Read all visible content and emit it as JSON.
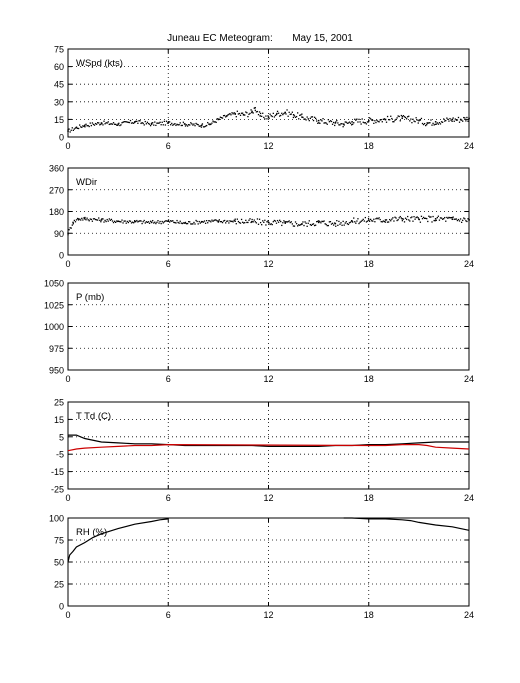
{
  "title": "Juneau EC Meteogram:       May 15, 2001",
  "chart_data": [
    {
      "type": "scatter",
      "label": "WSpd (kts)",
      "xlim": [
        0,
        24
      ],
      "xticks": [
        "0",
        "6",
        "12",
        "18",
        "24"
      ],
      "ylim": [
        0,
        75
      ],
      "yticks": [
        "0",
        "15",
        "30",
        "45",
        "60",
        "75"
      ],
      "grid": true,
      "series": [
        {
          "color": "#000000",
          "x": [
            0,
            0.5,
            1,
            2,
            3,
            4,
            5,
            6,
            7,
            8,
            8.5,
            9,
            9.5,
            10,
            10.5,
            11,
            11.2,
            11.5,
            12,
            12.5,
            13,
            13.5,
            14,
            15,
            16,
            16.5,
            17,
            18,
            19,
            20,
            21,
            21.5,
            22,
            23,
            23.5,
            24
          ],
          "y": [
            5,
            8,
            10,
            12,
            11,
            13,
            11,
            12,
            11,
            10,
            11,
            15,
            18,
            20,
            19,
            21,
            25,
            18,
            17,
            20,
            21,
            19,
            17,
            14,
            12,
            11,
            13,
            14,
            15,
            16,
            14,
            12,
            13,
            15,
            15,
            16
          ]
        }
      ]
    },
    {
      "type": "scatter",
      "label": "WDir",
      "xlim": [
        0,
        24
      ],
      "xticks": [
        "0",
        "6",
        "12",
        "18",
        "24"
      ],
      "ylim": [
        0,
        360
      ],
      "yticks": [
        "0",
        "90",
        "180",
        "270",
        "360"
      ],
      "grid": true,
      "series": [
        {
          "color": "#000000",
          "x": [
            0,
            0.3,
            0.6,
            1,
            2,
            3,
            4,
            5,
            6,
            7,
            8,
            9,
            10,
            11,
            12,
            13,
            14,
            15,
            16,
            17,
            18,
            19,
            20,
            21,
            22,
            23,
            24
          ],
          "y": [
            90,
            135,
            150,
            150,
            145,
            140,
            138,
            135,
            140,
            132,
            138,
            140,
            140,
            138,
            135,
            132,
            128,
            135,
            130,
            140,
            145,
            145,
            150,
            148,
            150,
            148,
            145
          ]
        }
      ]
    },
    {
      "type": "line",
      "label": "P (mb)",
      "xlim": [
        0,
        24
      ],
      "xticks": [
        "0",
        "6",
        "12",
        "18",
        "24"
      ],
      "ylim": [
        950,
        1050
      ],
      "yticks": [
        "950",
        "975",
        "1000",
        "1025",
        "1050"
      ],
      "grid": true,
      "series": []
    },
    {
      "type": "line",
      "label": "T Td (C)",
      "xlim": [
        0,
        24
      ],
      "xticks": [
        "0",
        "6",
        "12",
        "18",
        "24"
      ],
      "ylim": [
        -25,
        25
      ],
      "yticks": [
        "-25",
        "-15",
        "-5",
        "5",
        "15",
        "25"
      ],
      "grid": true,
      "series": [
        {
          "color": "#000000",
          "x": [
            0,
            0.5,
            1,
            2,
            3,
            4,
            5,
            6,
            7,
            8,
            9,
            10,
            11,
            12,
            13,
            14,
            15,
            16,
            17,
            18,
            19,
            20,
            21,
            22,
            23,
            24
          ],
          "y": [
            6,
            6,
            4,
            2,
            1.5,
            1,
            1,
            0.5,
            0,
            0,
            0,
            0,
            0,
            -0.5,
            -0.5,
            -0.5,
            -0.5,
            0,
            0,
            0.5,
            0.5,
            1,
            1.5,
            2,
            2,
            2
          ]
        },
        {
          "color": "#cc0000",
          "x": [
            0,
            0.5,
            1,
            2,
            3,
            4,
            5,
            6,
            18,
            19,
            20,
            21,
            21.5,
            22,
            23,
            24
          ],
          "y": [
            -3,
            -2,
            -1.5,
            -1,
            -0.5,
            0,
            0,
            0.5,
            0,
            0,
            0.5,
            0.5,
            0,
            -1,
            -1.5,
            -2
          ]
        }
      ]
    },
    {
      "type": "line",
      "label": "RH (%)",
      "xlim": [
        0,
        24
      ],
      "xticks": [
        "0",
        "6",
        "12",
        "18",
        "24"
      ],
      "ylim": [
        0,
        100
      ],
      "yticks": [
        "0",
        "25",
        "50",
        "75",
        "100"
      ],
      "grid": true,
      "series": [
        {
          "color": "#000000",
          "segments": [
            {
              "x": [
                0,
                0.1,
                0.3,
                0.5,
                1,
                1.5,
                2,
                3,
                4,
                5,
                5.5,
                6
              ],
              "y": [
                50,
                58,
                62,
                67,
                72,
                78,
                82,
                88,
                93,
                96,
                98,
                99
              ]
            },
            {
              "x": [
                16.5,
                17,
                18,
                19,
                20,
                20.5,
                21,
                22,
                23,
                23.5,
                24
              ],
              "y": [
                100,
                100,
                99,
                99,
                98,
                97,
                95,
                92,
                90,
                88,
                86
              ]
            }
          ]
        }
      ]
    }
  ]
}
